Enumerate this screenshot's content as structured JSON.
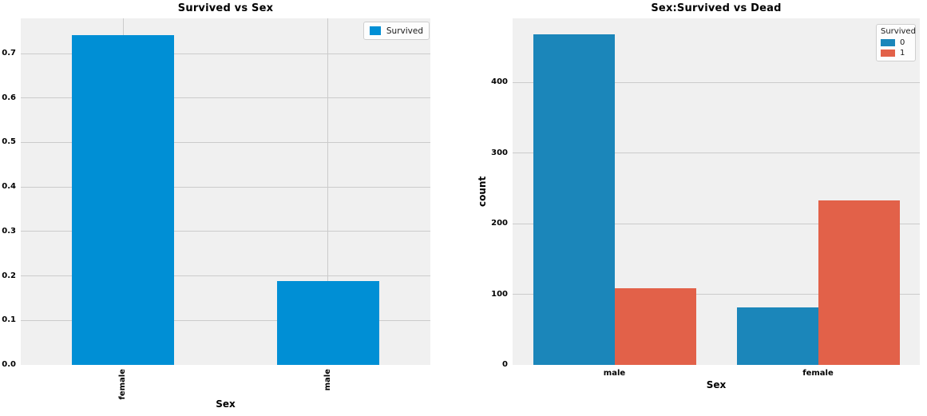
{
  "figure": {
    "background": "#ffffff",
    "plot_background": "#f0f0f0",
    "grid_color": "#cbcbcb"
  },
  "chart_data": [
    {
      "type": "bar",
      "title": "Survived vs Sex",
      "xlabel": "Sex",
      "ylabel": "",
      "categories": [
        "female",
        "male"
      ],
      "series": [
        {
          "name": "Survived",
          "color": "#008fd5",
          "values": [
            0.742,
            0.189
          ]
        }
      ],
      "ylim": [
        0,
        0.779
      ],
      "yticks": [
        0,
        0.1,
        0.2,
        0.3,
        0.4,
        0.5,
        0.6,
        0.7
      ],
      "ytick_labels": [
        "0.0",
        "0.1",
        "0.2",
        "0.3",
        "0.4",
        "0.5",
        "0.6",
        "0.7"
      ],
      "xtick_rotation": 90,
      "grid": "both",
      "legend": {
        "labels": [
          "Survived"
        ],
        "position": "upper-right"
      }
    },
    {
      "type": "bar",
      "title": "Sex:Survived vs Dead",
      "xlabel": "Sex",
      "ylabel": "count",
      "categories": [
        "male",
        "female"
      ],
      "series": [
        {
          "name": "0",
          "color": "#1b86ba",
          "values": [
            468,
            81
          ]
        },
        {
          "name": "1",
          "color": "#e26149",
          "values": [
            109,
            233
          ]
        }
      ],
      "ylim": [
        0,
        491
      ],
      "yticks": [
        0,
        100,
        200,
        300,
        400
      ],
      "ytick_labels": [
        "0",
        "100",
        "200",
        "300",
        "400"
      ],
      "xtick_rotation": 0,
      "grid": "y",
      "legend": {
        "title": "Survived",
        "labels": [
          "0",
          "1"
        ],
        "position": "upper-right"
      }
    }
  ]
}
